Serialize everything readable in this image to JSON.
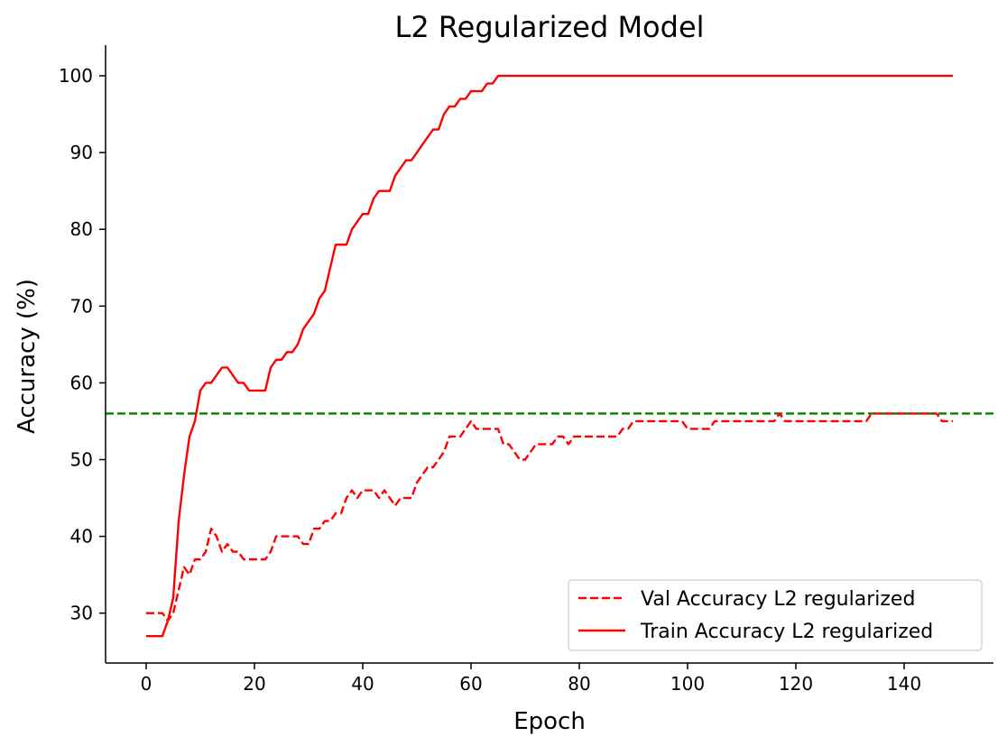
{
  "chart_data": {
    "type": "line",
    "title": "L2 Regularized Model",
    "xlabel": "Epoch",
    "ylabel": "Accuracy (%)",
    "xlim": [
      -7.5,
      156.5
    ],
    "ylim": [
      23.5,
      104
    ],
    "xticks": [
      0,
      20,
      40,
      60,
      80,
      100,
      120,
      140
    ],
    "yticks": [
      30,
      40,
      50,
      60,
      70,
      80,
      90,
      100
    ],
    "grid": false,
    "legend_position": "lower right",
    "hline": {
      "y": 56,
      "color": "#008000",
      "style": "dashed"
    },
    "series": [
      {
        "name": "Val Accuracy L2 regularized",
        "color": "#ff0000",
        "style": "dashed",
        "x": [
          0,
          1,
          2,
          3,
          4,
          5,
          6,
          7,
          8,
          9,
          10,
          11,
          12,
          13,
          14,
          15,
          16,
          17,
          18,
          19,
          20,
          21,
          22,
          23,
          24,
          25,
          26,
          27,
          28,
          29,
          30,
          31,
          32,
          33,
          34,
          35,
          36,
          37,
          38,
          39,
          40,
          41,
          42,
          43,
          44,
          45,
          46,
          47,
          48,
          49,
          50,
          51,
          52,
          53,
          54,
          55,
          56,
          57,
          58,
          59,
          60,
          61,
          62,
          63,
          64,
          65,
          66,
          67,
          68,
          69,
          70,
          71,
          72,
          73,
          74,
          75,
          76,
          77,
          78,
          79,
          80,
          81,
          82,
          83,
          84,
          85,
          86,
          87,
          88,
          89,
          90,
          91,
          92,
          93,
          94,
          95,
          96,
          97,
          98,
          99,
          100,
          101,
          102,
          103,
          104,
          105,
          106,
          107,
          108,
          109,
          110,
          111,
          112,
          113,
          114,
          115,
          116,
          117,
          118,
          119,
          120,
          121,
          122,
          123,
          124,
          125,
          126,
          127,
          128,
          129,
          130,
          131,
          132,
          133,
          134,
          135,
          136,
          137,
          138,
          139,
          140,
          141,
          142,
          143,
          144,
          145,
          146,
          147,
          148,
          149
        ],
        "values": [
          30,
          30,
          30,
          30,
          29,
          30,
          33,
          36,
          35,
          37,
          37,
          38,
          41,
          40,
          38,
          39,
          38,
          38,
          37,
          37,
          37,
          37,
          37,
          38,
          40,
          40,
          40,
          40,
          40,
          39,
          39,
          41,
          41,
          42,
          42,
          43,
          43,
          45,
          46,
          45,
          46,
          46,
          46,
          45,
          46,
          45,
          44,
          45,
          45,
          45,
          47,
          48,
          49,
          49,
          50,
          51,
          53,
          53,
          53,
          54,
          55,
          54,
          54,
          54,
          54,
          54,
          52,
          52,
          51,
          50,
          50,
          51,
          52,
          52,
          52,
          52,
          53,
          53,
          52,
          53,
          53,
          53,
          53,
          53,
          53,
          53,
          53,
          53,
          54,
          54,
          55,
          55,
          55,
          55,
          55,
          55,
          55,
          55,
          55,
          55,
          54,
          54,
          54,
          54,
          54,
          55,
          55,
          55,
          55,
          55,
          55,
          55,
          55,
          55,
          55,
          55,
          55,
          56,
          55,
          55,
          55,
          55,
          55,
          55,
          55,
          55,
          55,
          55,
          55,
          55,
          55,
          55,
          55,
          55,
          56,
          56,
          56,
          56,
          56,
          56,
          56,
          56,
          56,
          56,
          56,
          56,
          56,
          55,
          55,
          55
        ]
      },
      {
        "name": "Train Accuracy L2 regularized",
        "color": "#ff0000",
        "style": "solid",
        "x": [
          0,
          1,
          2,
          3,
          4,
          5,
          6,
          7,
          8,
          9,
          10,
          11,
          12,
          13,
          14,
          15,
          16,
          17,
          18,
          19,
          20,
          21,
          22,
          23,
          24,
          25,
          26,
          27,
          28,
          29,
          30,
          31,
          32,
          33,
          34,
          35,
          36,
          37,
          38,
          39,
          40,
          41,
          42,
          43,
          44,
          45,
          46,
          47,
          48,
          49,
          50,
          51,
          52,
          53,
          54,
          55,
          56,
          57,
          58,
          59,
          60,
          61,
          62,
          63,
          64,
          65,
          66,
          67,
          68,
          69,
          70,
          71,
          72,
          73,
          74,
          75,
          76,
          77,
          78,
          79,
          80,
          81,
          82,
          83,
          84,
          85,
          86,
          87,
          88,
          89,
          90,
          91,
          92,
          93,
          94,
          95,
          96,
          97,
          98,
          99,
          100,
          101,
          102,
          103,
          104,
          105,
          106,
          107,
          108,
          109,
          110,
          111,
          112,
          113,
          114,
          115,
          116,
          117,
          118,
          119,
          120,
          121,
          122,
          123,
          124,
          125,
          126,
          127,
          128,
          129,
          130,
          131,
          132,
          133,
          134,
          135,
          136,
          137,
          138,
          139,
          140,
          141,
          142,
          143,
          144,
          145,
          146,
          147,
          148,
          149
        ],
        "values": [
          27,
          27,
          27,
          27,
          29,
          32,
          42,
          48,
          53,
          55,
          59,
          60,
          60,
          61,
          62,
          62,
          61,
          60,
          60,
          59,
          59,
          59,
          59,
          62,
          63,
          63,
          64,
          64,
          65,
          67,
          68,
          69,
          71,
          72,
          75,
          78,
          78,
          78,
          80,
          81,
          82,
          82,
          84,
          85,
          85,
          85,
          87,
          88,
          89,
          89,
          90,
          91,
          92,
          93,
          93,
          95,
          96,
          96,
          97,
          97,
          98,
          98,
          98,
          99,
          99,
          100,
          100,
          100,
          100,
          100,
          100,
          100,
          100,
          100,
          100,
          100,
          100,
          100,
          100,
          100,
          100,
          100,
          100,
          100,
          100,
          100,
          100,
          100,
          100,
          100,
          100,
          100,
          100,
          100,
          100,
          100,
          100,
          100,
          100,
          100,
          100,
          100,
          100,
          100,
          100,
          100,
          100,
          100,
          100,
          100,
          100,
          100,
          100,
          100,
          100,
          100,
          100,
          100,
          100,
          100,
          100,
          100,
          100,
          100,
          100,
          100,
          100,
          100,
          100,
          100,
          100,
          100,
          100,
          100,
          100,
          100,
          100,
          100,
          100,
          100,
          100,
          100,
          100,
          100,
          100,
          100,
          100,
          100,
          100,
          100
        ]
      }
    ]
  }
}
